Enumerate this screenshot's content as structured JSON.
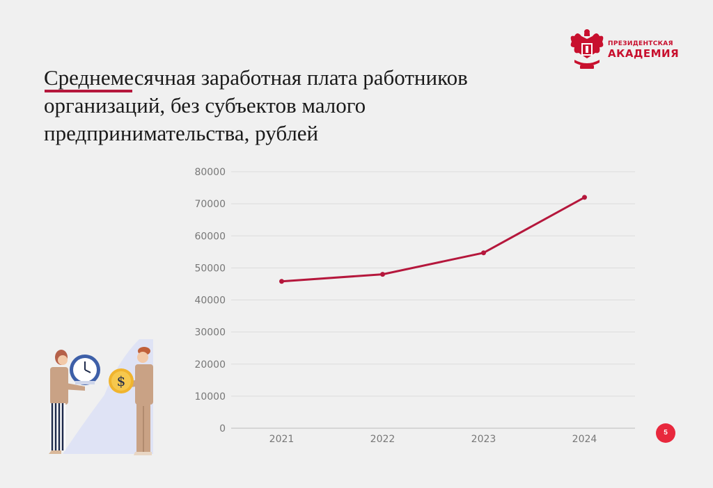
{
  "slide": {
    "title": "Среднемесячная заработная плата работников организаций, без субъектов малого предпринимательства, рублей",
    "page_number": "5"
  },
  "logo": {
    "line1": "ПРЕЗИДЕНТСКАЯ",
    "line2": "АКАДЕМИЯ",
    "color": "#c8102e"
  },
  "chart_data": {
    "type": "line",
    "title": "",
    "xlabel": "",
    "ylabel": "",
    "categories": [
      "2021",
      "2022",
      "2023",
      "2024"
    ],
    "series": [
      {
        "values": [
          45800,
          48000,
          54700,
          72000
        ],
        "color": "#b5173c"
      }
    ],
    "ylim": [
      0,
      80000
    ],
    "yticks": [
      "0",
      "10000",
      "20000",
      "30000",
      "40000",
      "50000",
      "60000",
      "70000",
      "80000"
    ],
    "grid": true,
    "legend": "none"
  }
}
